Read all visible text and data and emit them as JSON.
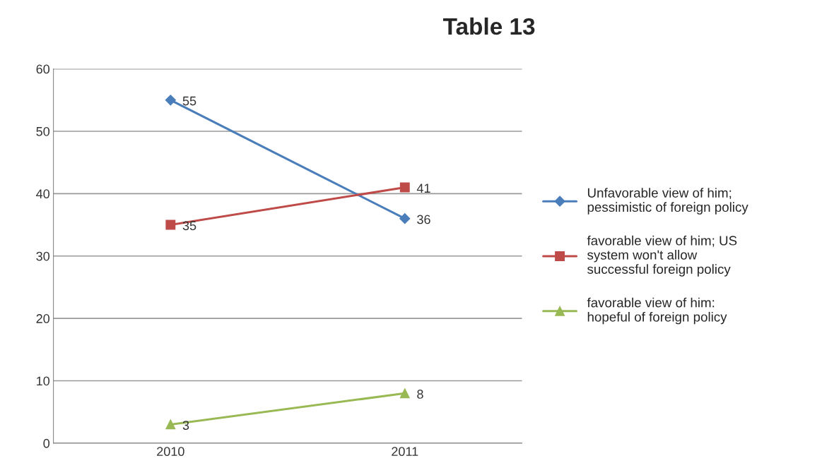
{
  "chart_data": {
    "type": "line",
    "title": "Table 13",
    "categories": [
      "2010",
      "2011"
    ],
    "series": [
      {
        "name": "Unfavorable view of him;\npessimistic of foreign policy",
        "color": "#4a7ebb",
        "marker": "diamond",
        "values": [
          55,
          36
        ]
      },
      {
        "name": "favorable view of him; US\nsystem won't allow\nsuccessful foreign policy",
        "color": "#be4b48",
        "marker": "square",
        "values": [
          35,
          41
        ]
      },
      {
        "name": "favorable view of him:\nhopeful of foreign policy",
        "color": "#98b954",
        "marker": "triangle",
        "values": [
          3,
          8
        ]
      }
    ],
    "ylim": [
      0,
      60
    ],
    "yticks": [
      0,
      10,
      20,
      30,
      40,
      50,
      60
    ],
    "grid": "y",
    "legend": "right",
    "data_labels": true,
    "line_style": "solid"
  }
}
